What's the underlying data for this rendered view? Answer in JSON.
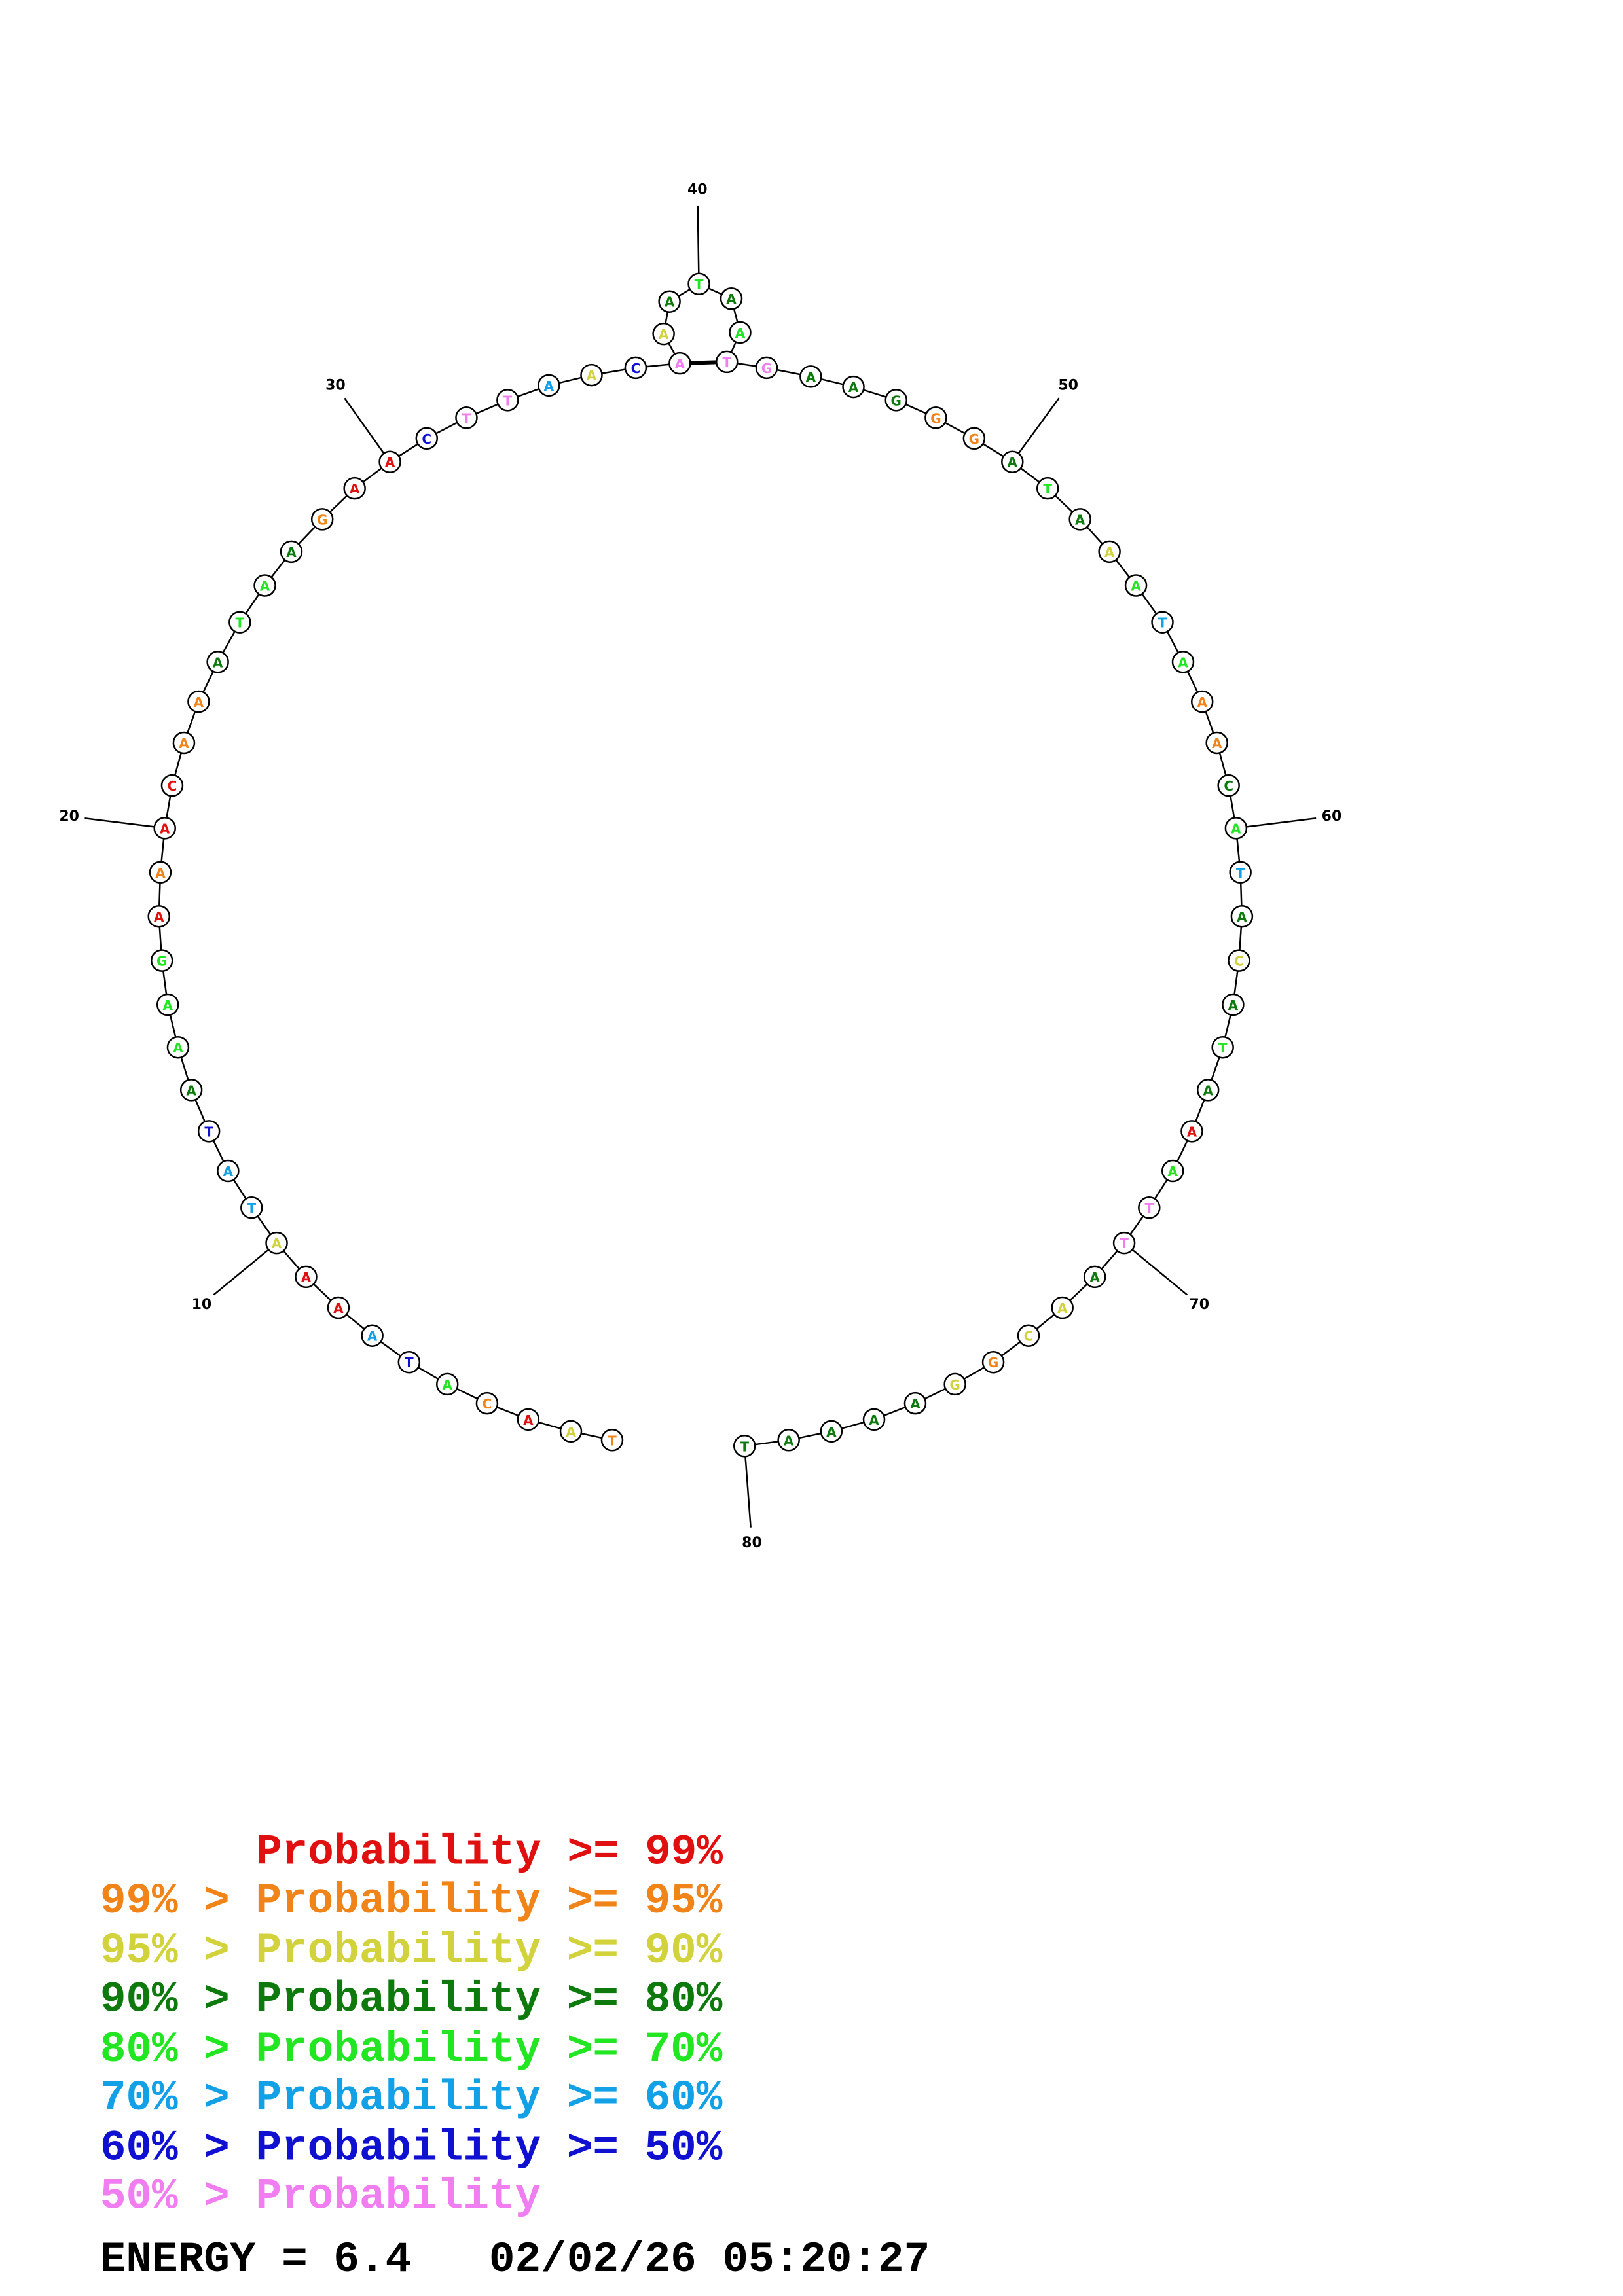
{
  "structure": {
    "nucleotides": [
      {
        "base": "T",
        "class": 1
      },
      {
        "base": "A",
        "class": 2
      },
      {
        "base": "A",
        "class": 0
      },
      {
        "base": "C",
        "class": 1
      },
      {
        "base": "A",
        "class": 4
      },
      {
        "base": "T",
        "class": 6
      },
      {
        "base": "A",
        "class": 5
      },
      {
        "base": "A",
        "class": 0
      },
      {
        "base": "A",
        "class": 0
      },
      {
        "base": "A",
        "class": 2
      },
      {
        "base": "T",
        "class": 5
      },
      {
        "base": "A",
        "class": 5
      },
      {
        "base": "T",
        "class": 6
      },
      {
        "base": "A",
        "class": 3
      },
      {
        "base": "A",
        "class": 4
      },
      {
        "base": "A",
        "class": 4
      },
      {
        "base": "G",
        "class": 4
      },
      {
        "base": "A",
        "class": 0
      },
      {
        "base": "A",
        "class": 1
      },
      {
        "base": "A",
        "class": 0
      },
      {
        "base": "C",
        "class": 0
      },
      {
        "base": "A",
        "class": 1
      },
      {
        "base": "A",
        "class": 1
      },
      {
        "base": "A",
        "class": 3
      },
      {
        "base": "T",
        "class": 4
      },
      {
        "base": "A",
        "class": 4
      },
      {
        "base": "A",
        "class": 3
      },
      {
        "base": "G",
        "class": 1
      },
      {
        "base": "A",
        "class": 0
      },
      {
        "base": "A",
        "class": 0
      },
      {
        "base": "C",
        "class": 6
      },
      {
        "base": "T",
        "class": 7
      },
      {
        "base": "T",
        "class": 7
      },
      {
        "base": "A",
        "class": 5
      },
      {
        "base": "A",
        "class": 2
      },
      {
        "base": "C",
        "class": 6
      },
      {
        "base": "A",
        "class": 7
      },
      {
        "base": "A",
        "class": 2
      },
      {
        "base": "A",
        "class": 3
      },
      {
        "base": "T",
        "class": 4
      },
      {
        "base": "A",
        "class": 3
      },
      {
        "base": "A",
        "class": 4
      },
      {
        "base": "T",
        "class": 7
      },
      {
        "base": "G",
        "class": 7
      },
      {
        "base": "A",
        "class": 3
      },
      {
        "base": "A",
        "class": 3
      },
      {
        "base": "G",
        "class": 3
      },
      {
        "base": "G",
        "class": 1
      },
      {
        "base": "G",
        "class": 1
      },
      {
        "base": "A",
        "class": 3
      },
      {
        "base": "T",
        "class": 4
      },
      {
        "base": "A",
        "class": 3
      },
      {
        "base": "A",
        "class": 2
      },
      {
        "base": "A",
        "class": 4
      },
      {
        "base": "T",
        "class": 5
      },
      {
        "base": "A",
        "class": 4
      },
      {
        "base": "A",
        "class": 1
      },
      {
        "base": "A",
        "class": 1
      },
      {
        "base": "C",
        "class": 3
      },
      {
        "base": "A",
        "class": 4
      },
      {
        "base": "T",
        "class": 5
      },
      {
        "base": "A",
        "class": 3
      },
      {
        "base": "C",
        "class": 2
      },
      {
        "base": "A",
        "class": 3
      },
      {
        "base": "T",
        "class": 4
      },
      {
        "base": "A",
        "class": 3
      },
      {
        "base": "A",
        "class": 0
      },
      {
        "base": "A",
        "class": 4
      },
      {
        "base": "T",
        "class": 7
      },
      {
        "base": "T",
        "class": 7
      },
      {
        "base": "A",
        "class": 3
      },
      {
        "base": "A",
        "class": 2
      },
      {
        "base": "C",
        "class": 2
      },
      {
        "base": "G",
        "class": 1
      },
      {
        "base": "G",
        "class": 2
      },
      {
        "base": "A",
        "class": 3
      },
      {
        "base": "A",
        "class": 3
      },
      {
        "base": "A",
        "class": 3
      },
      {
        "base": "A",
        "class": 3
      },
      {
        "base": "T",
        "class": 3
      }
    ],
    "pairs": [
      [
        37,
        43
      ]
    ],
    "numbering": [
      10,
      20,
      30,
      40,
      50,
      60,
      70,
      80
    ]
  },
  "legend": {
    "entries": [
      {
        "text": "Probability >= 99%",
        "color": "#e01010"
      },
      {
        "text": "99% > Probability >= 95%",
        "color": "#f08418"
      },
      {
        "text": "95% > Probability >= 90%",
        "color": "#d2d23c"
      },
      {
        "text": "90% > Probability >= 80%",
        "color": "#0e7a0e"
      },
      {
        "text": "80% > Probability >= 70%",
        "color": "#22e622"
      },
      {
        "text": "70% > Probability >= 60%",
        "color": "#12a0e6"
      },
      {
        "text": "60% > Probability >= 50%",
        "color": "#1010d0"
      },
      {
        "text": "50% > Probability",
        "color": "#f07ef0"
      }
    ]
  },
  "footer": "ENERGY = 6.4   02/02/26 05:20:27"
}
